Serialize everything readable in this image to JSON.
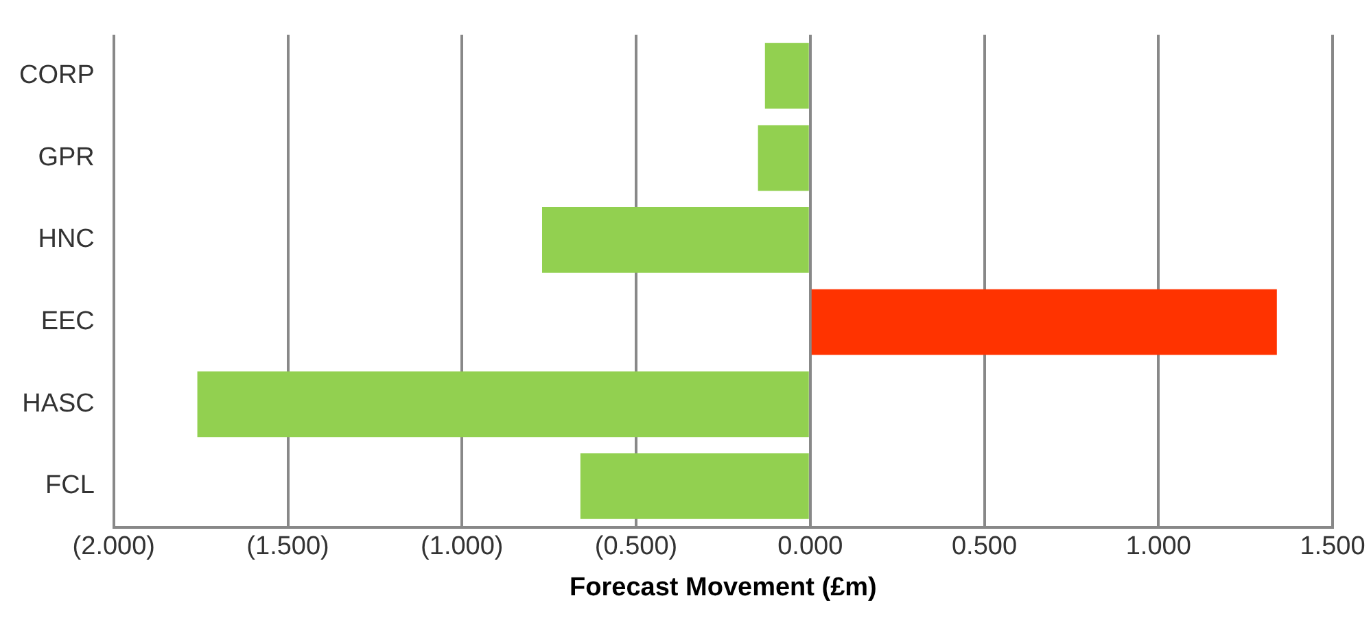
{
  "chart_data": {
    "type": "bar",
    "orientation": "horizontal",
    "xlabel": "Forecast Movement (£m)",
    "categories": [
      "CORP",
      "GPR",
      "HNC",
      "EEC",
      "HASC",
      "FCL"
    ],
    "values": [
      -0.13,
      -0.15,
      -0.77,
      1.34,
      -1.76,
      -0.66
    ],
    "colors": [
      "#92d050",
      "#92d050",
      "#92d050",
      "#ff3300",
      "#92d050",
      "#92d050"
    ],
    "xlim": [
      -2,
      1.5
    ],
    "xticks": [
      {
        "value": -2,
        "label": "(2.000)"
      },
      {
        "value": -1.5,
        "label": "(1.500)"
      },
      {
        "value": -1,
        "label": "(1.000)"
      },
      {
        "value": -0.5,
        "label": "(0.500)"
      },
      {
        "value": 0,
        "label": "0.000"
      },
      {
        "value": 0.5,
        "label": "0.500"
      },
      {
        "value": 1,
        "label": "1.000"
      },
      {
        "value": 1.5,
        "label": "1.500"
      }
    ],
    "grid": "x",
    "legend": false
  }
}
